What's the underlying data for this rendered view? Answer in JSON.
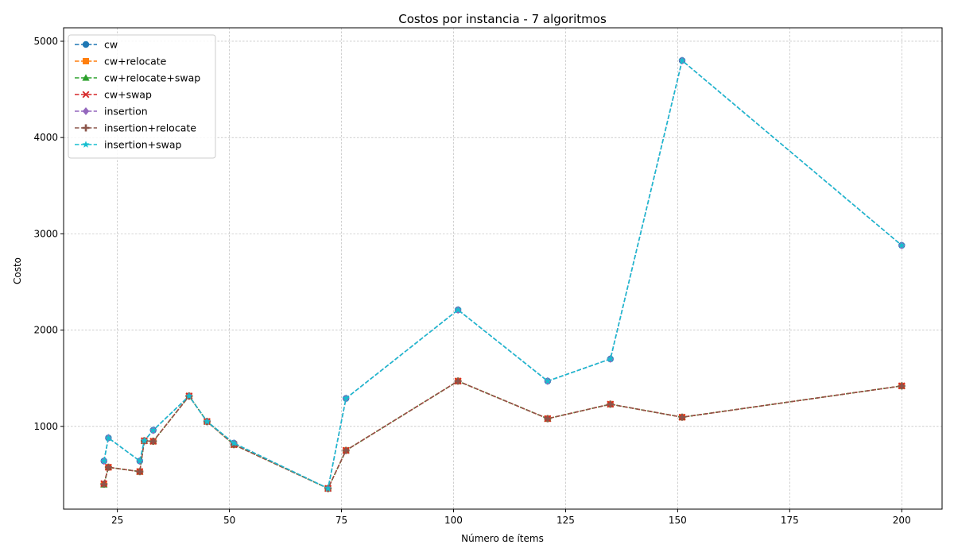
{
  "chart_data": {
    "type": "line",
    "title": "Costos por instancia - 7 algoritmos",
    "xlabel": "Número de ítems",
    "ylabel": "Costo",
    "xlim": [
      13,
      209
    ],
    "ylim": [
      140,
      5140
    ],
    "xticks": [
      25,
      50,
      75,
      100,
      125,
      150,
      175,
      200
    ],
    "yticks": [
      1000,
      2000,
      3000,
      4000,
      5000
    ],
    "grid": true,
    "legend_position": "top-left",
    "x": [
      22,
      23,
      30,
      31,
      33,
      41,
      45,
      51,
      72,
      76,
      101,
      121,
      135,
      151,
      200
    ],
    "series": [
      {
        "name": "cw",
        "color": "#1f77b4",
        "marker": "circle",
        "values": [
          640,
          880,
          640,
          850,
          960,
          1315,
          1050,
          825,
          355,
          1290,
          2210,
          1470,
          1700,
          4800,
          2880
        ]
      },
      {
        "name": "cw+relocate",
        "color": "#ff7f0e",
        "marker": "square",
        "values": [
          400,
          575,
          530,
          850,
          845,
          1315,
          1050,
          810,
          355,
          750,
          1470,
          1080,
          1230,
          1095,
          1420
        ]
      },
      {
        "name": "cw+relocate+swap",
        "color": "#2ca02c",
        "marker": "triangle",
        "values": [
          395,
          575,
          530,
          850,
          845,
          1315,
          1050,
          810,
          355,
          750,
          1470,
          1080,
          1230,
          1095,
          1420
        ]
      },
      {
        "name": "cw+swap",
        "color": "#d62728",
        "marker": "x",
        "values": [
          405,
          575,
          530,
          850,
          845,
          1315,
          1050,
          810,
          355,
          750,
          1470,
          1080,
          1230,
          1095,
          1420
        ]
      },
      {
        "name": "insertion",
        "color": "#9467bd",
        "marker": "diamond",
        "values": [
          640,
          880,
          640,
          850,
          960,
          1315,
          1050,
          825,
          355,
          1290,
          2210,
          1470,
          1700,
          4800,
          2880
        ]
      },
      {
        "name": "insertion+relocate",
        "color": "#8c564b",
        "marker": "plus",
        "values": [
          400,
          575,
          530,
          850,
          845,
          1315,
          1050,
          810,
          355,
          750,
          1470,
          1080,
          1230,
          1095,
          1420
        ]
      },
      {
        "name": "insertion+swap",
        "color": "#17becf",
        "marker": "star",
        "values": [
          640,
          880,
          640,
          850,
          960,
          1315,
          1050,
          825,
          355,
          1290,
          2210,
          1470,
          1700,
          4800,
          2880
        ]
      }
    ]
  }
}
